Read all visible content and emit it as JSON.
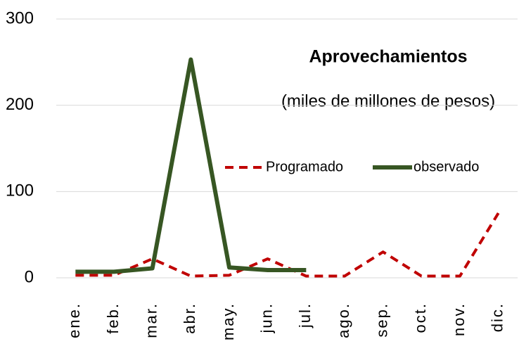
{
  "chart_data": {
    "type": "line",
    "title": "Aprovechamientos",
    "subtitle": "(miles de millones de pesos)",
    "categories": [
      "ene.",
      "feb.",
      "mar.",
      "abr.",
      "may.",
      "jun.",
      "jul.",
      "ago.",
      "sep.",
      "oct.",
      "nov.",
      "dic."
    ],
    "series": [
      {
        "name": "Programado",
        "color": "#c00000",
        "dash": true,
        "values": [
          3,
          3,
          22,
          2,
          3,
          22,
          2,
          2,
          30,
          2,
          2,
          75
        ]
      },
      {
        "name": "observado",
        "color": "#375623",
        "dash": false,
        "values": [
          7,
          7,
          11,
          253,
          12,
          9,
          9,
          null,
          null,
          null,
          null,
          null
        ]
      }
    ],
    "ylim": [
      0,
      300
    ],
    "yticks": [
      0,
      100,
      200,
      300
    ],
    "grid": true
  }
}
